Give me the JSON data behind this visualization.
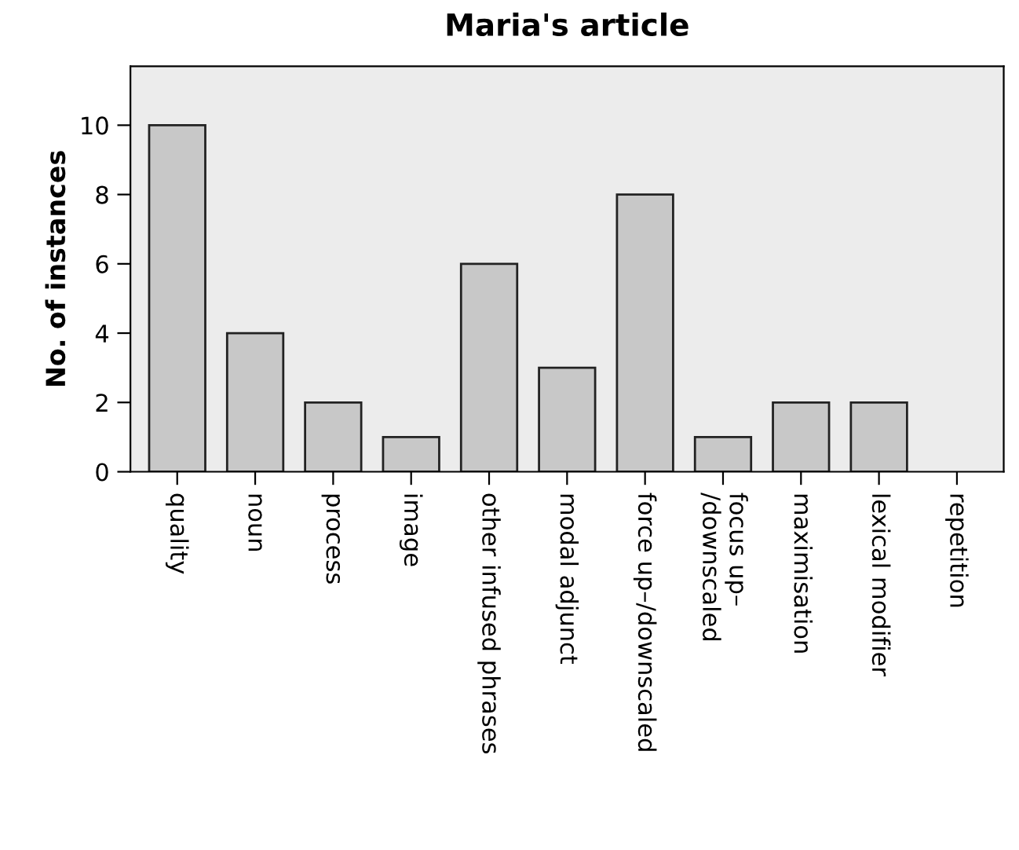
{
  "chart_data": {
    "type": "bar",
    "title": "Maria's article",
    "ylabel": "No. of instances",
    "categories": [
      "quality",
      "noun",
      "process",
      "image",
      "other infused phrases",
      "modal adjunct",
      "force up–/downscaled",
      "focus up–\n/downscaled",
      "maximisation",
      "lexical modifier",
      "repetition"
    ],
    "values": [
      10,
      4,
      2,
      1,
      6,
      3,
      8,
      1,
      2,
      2,
      0
    ],
    "color": "#c8c8c8",
    "ylim": [
      0,
      11.7
    ],
    "yticks": [
      0,
      2,
      4,
      6,
      8,
      10
    ],
    "grid": false
  }
}
